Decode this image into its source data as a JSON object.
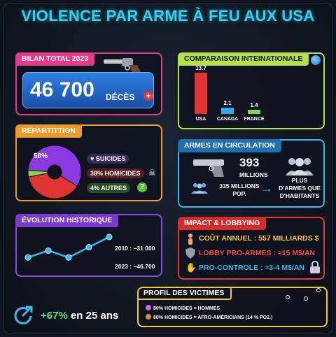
{
  "title": "VIOLENCE PAR ARME À FEU AUX USA",
  "bilan": {
    "tag": "BILAN TOTAL 2023",
    "deaths": "46 700",
    "unit": "DÉCÈS",
    "badge": "+"
  },
  "comparaison": {
    "tag": "COMPARAISON INTEINATIONALE",
    "chart_data": {
      "type": "bar",
      "categories": [
        "USA",
        "CANADA",
        "FRANCE"
      ],
      "values": [
        13.7,
        2.1,
        1.4
      ],
      "value_labels": [
        "13.7",
        "2.1",
        "1.4"
      ],
      "colors": [
        "#e03434",
        "#2fa8e8",
        "#8fd04a"
      ]
    }
  },
  "repartition": {
    "tag": "RÉPARTITTION",
    "center_label": "58%",
    "chart_data": {
      "type": "pie",
      "categories": [
        "SUICIDES",
        "HOMICIDES",
        "AUTRES"
      ],
      "values": [
        58,
        38,
        4
      ],
      "colors": [
        "#8a3ae0",
        "#e03434",
        "#8fd04a"
      ]
    },
    "legend": {
      "suicides": "SUICIDES",
      "homicides": "38% HOMICIDES",
      "autres": "4% AUTRES"
    }
  },
  "armes": {
    "tag": "ARMES EN CIRCULATION",
    "count": "393",
    "count_unit": "MILLIONS",
    "population": "335 MILLIONS",
    "population_unit": "POP.",
    "conclusion_1": "PLUS",
    "conclusion_2": "D'ARMES QUE",
    "conclusion_3": "D'HABITANTS"
  },
  "evolution": {
    "tag": "ÉVOLUTION HISTORIQUE",
    "label_2010": "2010 : ~31 000",
    "label_2023": "2023 : ~46.700",
    "chart_data": {
      "type": "line",
      "values": [
        2,
        4,
        2,
        5,
        8
      ]
    }
  },
  "impact": {
    "tag": "IMPACT & LOBBYING",
    "cout": "COÛT ANNUEL : 557 MILLIARDS $",
    "lobby": "LOBBY PRO-ARMES : ≈15 M$/AN",
    "pro_controle": "PRO-CONTROLE : ≈3-4 M$/AN"
  },
  "profil": {
    "tag": "PROFIL DES VICTIMES",
    "line1": "80% HOMICIDES = HOMMES",
    "line2": "60% HOMICIDES = AFRO-AMÉRICIANS (14 % PO2.)"
  },
  "growth": {
    "value": "+67%",
    "text": "en 25 ans"
  },
  "colors": {
    "title": "#35d0f0",
    "bilan": "#e83a8c",
    "comparaison": "#b4e04a",
    "repartition": "#f09a28",
    "armes": "#3ab8ec",
    "evolution": "#8a4ae0",
    "impact": "#e23838",
    "profil": "#f0c83a"
  }
}
